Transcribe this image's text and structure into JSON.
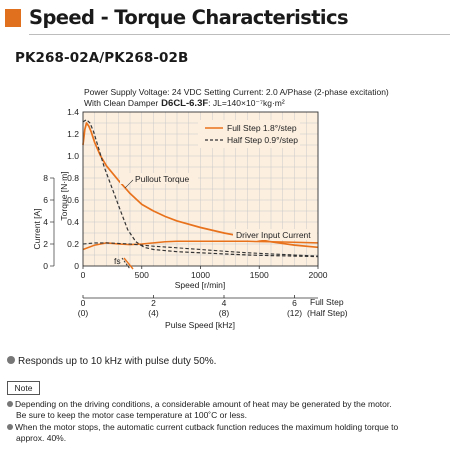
{
  "section_title": "Speed - Torque Characteristics",
  "model": "PK268-02A/PK268-02B",
  "chart_data": {
    "type": "line",
    "conditions_line1": "Power Supply Voltage: 24 VDC  Setting Current: 2.0 A/Phase (2-phase excitation)",
    "conditions_line2_prefix": "With Clean Damper",
    "damper_model": "D6CL-6.3F",
    "inertia_text": ": JL=140×10⁻⁷kg·m²",
    "xlabel": "Speed [r/min]",
    "xlim": [
      0,
      2000
    ],
    "xticks": [
      "0",
      "500",
      "1000",
      "1500",
      "2000"
    ],
    "ylabel": "Torque [N·m]",
    "ylim": [
      0,
      1.4
    ],
    "yticks": [
      "0",
      "0.2",
      "0.4",
      "0.6",
      "0.8",
      "1.0",
      "1.2",
      "1.4"
    ],
    "y2label": "Current [A]",
    "y2ticks": [
      "0",
      "2",
      "4",
      "6",
      "8"
    ],
    "pulse_axis_label": "Pulse Speed [kHz]",
    "full_step_ticks": [
      "0",
      "2",
      "4",
      "6"
    ],
    "half_step_ticks": [
      "(0)",
      "(4)",
      "(8)",
      "(12)"
    ],
    "full_step_label": "Full Step",
    "half_step_label": "(Half Step)",
    "grid": true,
    "legend_position": "top-right",
    "annotations": {
      "pullout_torque": "Pullout Torque",
      "driver_input_current": "Driver Input Current",
      "fs": "fs"
    },
    "colors": {
      "full_step": "#e8721c",
      "half_step": "#333333",
      "grid": "#c8c8c8",
      "plot_bg": "#fcefe0",
      "accent": "#e0701e"
    },
    "series": [
      {
        "name": "Full Step 1.8°/step",
        "style": "solid",
        "x": [
          0,
          15,
          30,
          50,
          70,
          100,
          150,
          200,
          300,
          400,
          500,
          600,
          700,
          800,
          1000,
          1200,
          1400,
          1600,
          1800,
          2000
        ],
        "values": [
          1.1,
          1.24,
          1.3,
          1.27,
          1.22,
          1.12,
          1.0,
          0.91,
          0.78,
          0.66,
          0.56,
          0.5,
          0.45,
          0.41,
          0.35,
          0.3,
          0.26,
          0.22,
          0.19,
          0.17
        ]
      },
      {
        "name": "Half Step 0.9°/step",
        "style": "dashed",
        "x": [
          0,
          30,
          60,
          90,
          130,
          180,
          250,
          320,
          380,
          450,
          520,
          600,
          800,
          1000,
          1200,
          1400,
          1600,
          1800,
          2000
        ],
        "values": [
          1.31,
          1.33,
          1.3,
          1.22,
          1.08,
          0.9,
          0.7,
          0.5,
          0.33,
          0.22,
          0.17,
          0.15,
          0.13,
          0.12,
          0.11,
          0.1,
          0.095,
          0.09,
          0.085
        ]
      },
      {
        "name": "Driver Input Current (Full Step)",
        "style": "solid",
        "x": [
          0,
          100,
          200,
          300,
          400,
          500,
          600,
          700,
          800,
          1000,
          1200,
          1400,
          1600,
          1800,
          2000
        ],
        "values": [
          0.15,
          0.19,
          0.21,
          0.2,
          0.195,
          0.2,
          0.21,
          0.22,
          0.225,
          0.225,
          0.225,
          0.225,
          0.22,
          0.215,
          0.21
        ]
      },
      {
        "name": "Driver Input Current (Half Step)",
        "style": "dashed",
        "x": [
          0,
          100,
          200,
          300,
          400,
          500,
          600,
          800,
          1000,
          1200,
          1400,
          1600,
          1800,
          2000
        ],
        "values": [
          0.2,
          0.21,
          0.21,
          0.205,
          0.2,
          0.19,
          0.18,
          0.165,
          0.15,
          0.135,
          0.12,
          0.11,
          0.1,
          0.09
        ]
      }
    ]
  },
  "notes": {
    "main_bullet": "Responds up to 10 kHz with pulse duty 50%.",
    "note_label": "Note",
    "note1_line1": "Depending on the driving conditions, a considerable amount of heat may be generated by the motor.",
    "note1_line2": "Be sure to keep the motor case temperature at 100˚C or less.",
    "note2_line1": "When the motor stops, the automatic current cutback function reduces the maximum holding torque to",
    "note2_line2": "approx. 40%."
  }
}
